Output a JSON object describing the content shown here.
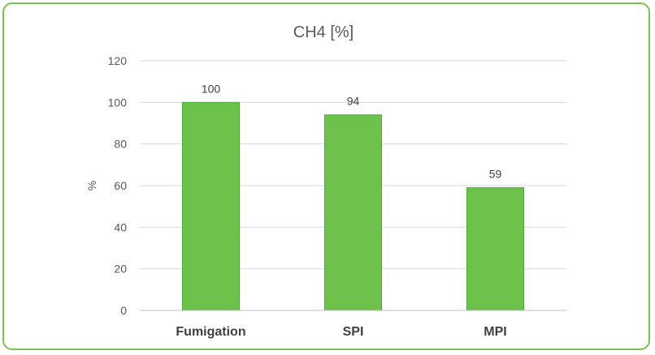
{
  "chart_data": {
    "type": "bar",
    "title": "CH4 [%]",
    "xlabel": "",
    "ylabel": "%",
    "categories": [
      "Fumigation",
      "SPI",
      "MPI"
    ],
    "values": [
      100,
      94,
      59
    ],
    "data_labels": [
      "100",
      "94",
      "59"
    ],
    "ylim": [
      0,
      120
    ],
    "yticks": [
      0,
      20,
      40,
      60,
      80,
      100,
      120
    ],
    "ytick_labels": [
      "0",
      "20",
      "40",
      "60",
      "80",
      "100",
      "120"
    ],
    "grid": true,
    "legend": "none",
    "colors": {
      "bar_fill": "#6cc24a",
      "bar_stroke": "#4fa83a",
      "frame": "#7cc252",
      "grid": "#d9d9d9",
      "axis": "#bfbfbf"
    }
  }
}
